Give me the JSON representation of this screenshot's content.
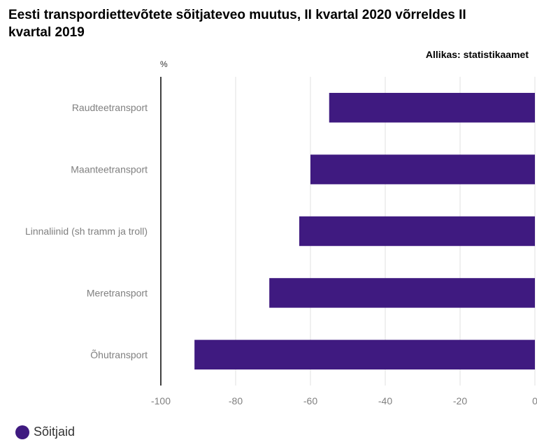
{
  "title": "Eesti transpordiettevõtete sõitjateveo muutus, II kvartal 2020 võrreldes II kvartal 2019",
  "source": "Allikas: statistikaamet",
  "colors": {
    "bar": "#3f1a80",
    "grid": "#e0e0e0",
    "axis": "#000000"
  },
  "chart_data": {
    "type": "bar",
    "orientation": "horizontal",
    "title": "Eesti transpordiettevõtete sõitjateveo muutus, II kvartal 2020 võrreldes II kvartal 2019",
    "unit": "%",
    "categories": [
      "Raudteetransport",
      "Maanteetransport",
      "Linnaliinid (sh tramm ja troll)",
      "Meretransport",
      "Õhutransport"
    ],
    "series": [
      {
        "name": "Sõitjaid",
        "values": [
          -55,
          -60,
          -63,
          -71,
          -91
        ]
      }
    ],
    "xlim": [
      -100,
      0
    ],
    "xticks": [
      -100,
      -80,
      -60,
      -40,
      -20,
      0
    ],
    "xtick_labels": [
      "-100",
      "-80",
      "-60",
      "-40",
      "-20",
      "0"
    ],
    "legend": "bottom-left"
  }
}
